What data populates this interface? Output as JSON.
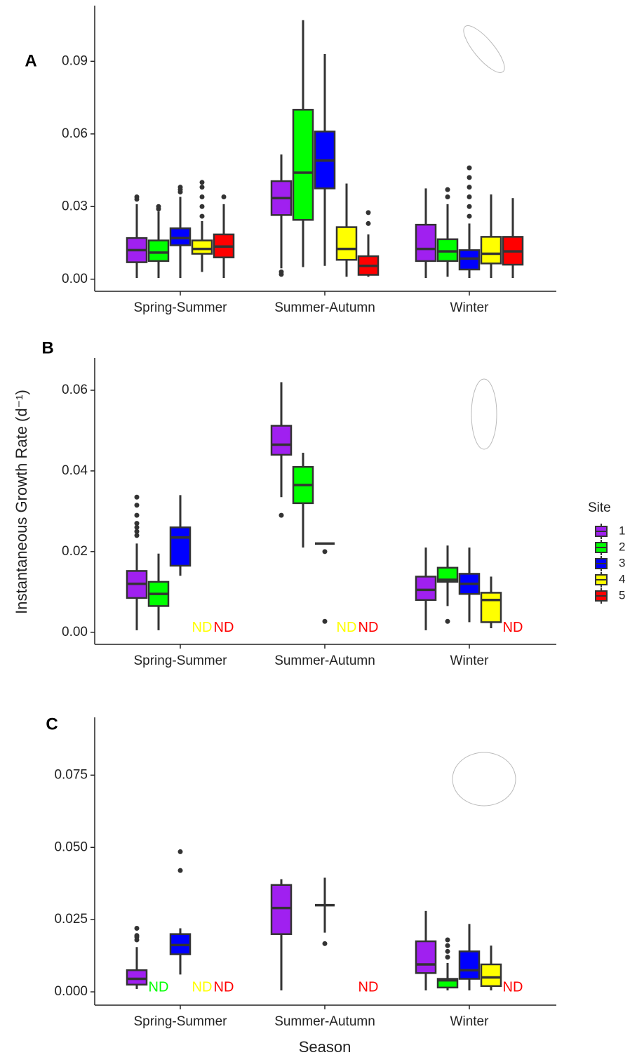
{
  "figure": {
    "ylabel": "Instantaneous Growth Rate (d⁻¹)",
    "xlabel": "Season",
    "legend_title": "Site"
  },
  "chart_data": [
    {
      "type": "box",
      "panel_label": "A",
      "categories": [
        "Spring-Summer",
        "Summer-Autumn",
        "Winter"
      ],
      "ylim": [
        -0.005,
        0.113
      ],
      "yticks": [
        {
          "value": 0,
          "label": "0.00"
        },
        0.03,
        0.06,
        0.09
      ],
      "series": [
        {
          "name": "1",
          "color": "#a020f0",
          "values": [
            {
              "whislo": 0.0005,
              "q1": 0.007,
              "med": 0.012,
              "q3": 0.017,
              "whishi": 0.031,
              "fliers": [
                0.033,
                0.034
              ]
            },
            {
              "whislo": 0.0045,
              "q1": 0.0265,
              "med": 0.0335,
              "q3": 0.0405,
              "whishi": 0.0515,
              "fliers": [
                0.002,
                0.003
              ]
            },
            {
              "whislo": 0.0005,
              "q1": 0.0075,
              "med": 0.0125,
              "q3": 0.0225,
              "whishi": 0.0375,
              "fliers": []
            }
          ]
        },
        {
          "name": "2",
          "color": "#00ff00",
          "values": [
            {
              "whislo": 0.0005,
              "q1": 0.0075,
              "med": 0.011,
              "q3": 0.016,
              "whishi": 0.028,
              "fliers": [
                0.029,
                0.03
              ]
            },
            {
              "whislo": 0.005,
              "q1": 0.0245,
              "med": 0.044,
              "q3": 0.07,
              "whishi": 0.107,
              "fliers": []
            },
            {
              "whislo": 0.001,
              "q1": 0.0075,
              "med": 0.0115,
              "q3": 0.0165,
              "whishi": 0.031,
              "fliers": [
                0.034,
                0.037
              ]
            }
          ]
        },
        {
          "name": "3",
          "color": "#0000ff",
          "values": [
            {
              "whislo": 0.0005,
              "q1": 0.014,
              "med": 0.017,
              "q3": 0.021,
              "whishi": 0.034,
              "fliers": [
                0.036,
                0.037,
                0.038
              ]
            },
            {
              "whislo": 0.0055,
              "q1": 0.0375,
              "med": 0.049,
              "q3": 0.061,
              "whishi": 0.093,
              "fliers": []
            },
            {
              "whislo": 0.0005,
              "q1": 0.004,
              "med": 0.0085,
              "q3": 0.012,
              "whishi": 0.023,
              "fliers": [
                0.026,
                0.03,
                0.034,
                0.038,
                0.042,
                0.046
              ]
            }
          ]
        },
        {
          "name": "4",
          "color": "#ffff00",
          "values": [
            {
              "whislo": 0.003,
              "q1": 0.0105,
              "med": 0.0125,
              "q3": 0.016,
              "whishi": 0.024,
              "fliers": [
                0.026,
                0.03,
                0.034,
                0.038,
                0.04
              ]
            },
            {
              "whislo": 0.001,
              "q1": 0.008,
              "med": 0.0125,
              "q3": 0.0215,
              "whishi": 0.0395,
              "fliers": []
            },
            {
              "whislo": 0.0005,
              "q1": 0.0065,
              "med": 0.0105,
              "q3": 0.0175,
              "whishi": 0.035,
              "fliers": []
            }
          ]
        },
        {
          "name": "5",
          "color": "#ff0000",
          "values": [
            {
              "whislo": 0.0005,
              "q1": 0.009,
              "med": 0.0135,
              "q3": 0.0185,
              "whishi": 0.031,
              "fliers": [
                0.034
              ]
            },
            {
              "whislo": 0.001,
              "q1": 0.0018,
              "med": 0.0055,
              "q3": 0.0095,
              "whishi": 0.0185,
              "fliers": [
                0.023,
                0.0275
              ]
            },
            {
              "whislo": 0.0005,
              "q1": 0.006,
              "med": 0.0115,
              "q3": 0.0175,
              "whishi": 0.0335,
              "fliers": []
            }
          ]
        }
      ]
    },
    {
      "type": "box",
      "panel_label": "B",
      "categories": [
        "Spring-Summer",
        "Summer-Autumn",
        "Winter"
      ],
      "ylim": [
        -0.003,
        0.068
      ],
      "yticks": [
        {
          "value": 0,
          "label": "0.00"
        },
        0.02,
        0.04,
        0.06
      ],
      "series": [
        {
          "name": "1",
          "color": "#a020f0",
          "values": [
            {
              "whislo": 0.0005,
              "q1": 0.0085,
              "med": 0.012,
              "q3": 0.0152,
              "whishi": 0.022,
              "fliers": [
                0.024,
                0.025,
                0.026,
                0.027,
                0.029,
                0.0315,
                0.0335
              ]
            },
            {
              "whislo": 0.0335,
              "q1": 0.044,
              "med": 0.0465,
              "q3": 0.0512,
              "whishi": 0.062,
              "fliers": [
                0.029
              ]
            },
            {
              "whislo": 0.0005,
              "q1": 0.008,
              "med": 0.0105,
              "q3": 0.0138,
              "whishi": 0.021,
              "fliers": []
            }
          ]
        },
        {
          "name": "2",
          "color": "#00ff00",
          "values": [
            {
              "whislo": 0.0005,
              "q1": 0.0065,
              "med": 0.0095,
              "q3": 0.0125,
              "whishi": 0.0195,
              "fliers": []
            },
            {
              "whislo": 0.021,
              "q1": 0.032,
              "med": 0.0365,
              "q3": 0.041,
              "whishi": 0.0445,
              "fliers": []
            },
            {
              "whislo": 0.0065,
              "q1": 0.0125,
              "med": 0.013,
              "q3": 0.016,
              "whishi": 0.0215,
              "fliers": [
                0.0027
              ]
            }
          ]
        },
        {
          "name": "3",
          "color": "#0000ff",
          "values": [
            {
              "whislo": 0.014,
              "q1": 0.0165,
              "med": 0.0235,
              "q3": 0.026,
              "whishi": 0.034,
              "fliers": []
            },
            {
              "whislo": 0.022,
              "q1": 0.022,
              "med": 0.022,
              "q3": 0.022,
              "whishi": 0.022,
              "fliers": [
                0.02,
                0.0027
              ]
            },
            {
              "whislo": 0.0025,
              "q1": 0.0095,
              "med": 0.012,
              "q3": 0.0145,
              "whishi": 0.021,
              "fliers": []
            }
          ]
        },
        {
          "name": "4",
          "color": "#ffff00",
          "values": [
            "ND",
            "ND",
            {
              "whislo": 0.001,
              "q1": 0.0025,
              "med": 0.008,
              "q3": 0.0098,
              "whishi": 0.0138,
              "fliers": []
            }
          ]
        },
        {
          "name": "5",
          "color": "#ff0000",
          "values": [
            "ND",
            "ND",
            "ND"
          ]
        }
      ]
    },
    {
      "type": "box",
      "panel_label": "C",
      "categories": [
        "Spring-Summer",
        "Summer-Autumn",
        "Winter"
      ],
      "ylim": [
        -0.0046,
        0.095
      ],
      "yticks": [
        {
          "value": 0,
          "label": "0.000"
        },
        0.025,
        {
          "value": 0.05,
          "label": "0.050"
        },
        0.075
      ],
      "series": [
        {
          "name": "1",
          "color": "#a020f0",
          "values": [
            {
              "whislo": 0.001,
              "q1": 0.0025,
              "med": 0.0045,
              "q3": 0.0075,
              "whishi": 0.0155,
              "fliers": [
                0.018,
                0.019,
                0.0195,
                0.022
              ]
            },
            {
              "whislo": 0.0005,
              "q1": 0.02,
              "med": 0.029,
              "q3": 0.037,
              "whishi": 0.039,
              "fliers": []
            },
            {
              "whislo": 0.0005,
              "q1": 0.0065,
              "med": 0.0095,
              "q3": 0.0175,
              "whishi": 0.028,
              "fliers": []
            }
          ]
        },
        {
          "name": "2",
          "color": "#00ff00",
          "values": [
            "ND",
            null,
            {
              "whislo": 0.0005,
              "q1": 0.0015,
              "med": 0.004,
              "q3": 0.0045,
              "whishi": 0.01,
              "fliers": [
                0.012,
                0.014,
                0.016,
                0.018
              ]
            }
          ]
        },
        {
          "name": "3",
          "color": "#0000ff",
          "values": [
            {
              "whislo": 0.006,
              "q1": 0.013,
              "med": 0.0162,
              "q3": 0.02,
              "whishi": 0.022,
              "fliers": [
                0.042,
                0.0485
              ]
            },
            {
              "whislo": 0.0205,
              "q1": 0.03,
              "med": 0.03,
              "q3": 0.03,
              "whishi": 0.0395,
              "fliers": [
                0.0167
              ]
            },
            {
              "whislo": 0.0005,
              "q1": 0.0045,
              "med": 0.0075,
              "q3": 0.014,
              "whishi": 0.0235,
              "fliers": []
            }
          ]
        },
        {
          "name": "4",
          "color": "#ffff00",
          "values": [
            "ND",
            null,
            {
              "whislo": 0.0005,
              "q1": 0.002,
              "med": 0.005,
              "q3": 0.0095,
              "whishi": 0.016,
              "fliers": []
            }
          ]
        },
        {
          "name": "5",
          "color": "#ff0000",
          "values": [
            "ND",
            "ND",
            "ND"
          ]
        }
      ]
    }
  ]
}
